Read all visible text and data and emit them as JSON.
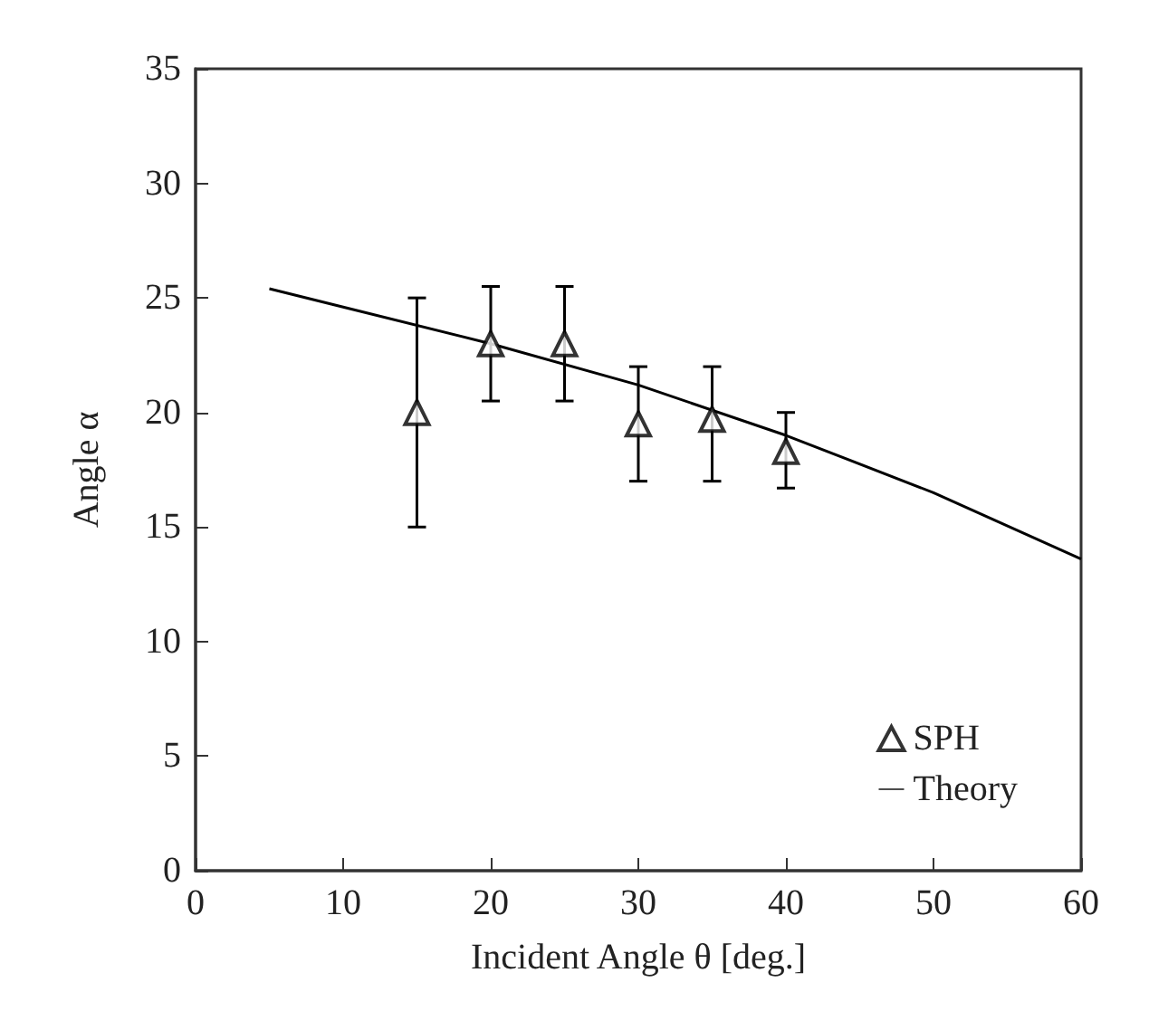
{
  "chart_data": {
    "type": "scatter",
    "xlabel": "Incident Angle θ [deg.]",
    "ylabel": "Angle α",
    "xlim": [
      0,
      60
    ],
    "xticks": [
      0,
      10,
      20,
      30,
      40,
      50,
      60
    ],
    "ylim": [
      0,
      35
    ],
    "yticks": [
      0,
      5,
      10,
      15,
      20,
      25,
      30,
      35
    ],
    "legend": "bottom right",
    "grid": false,
    "series": [
      {
        "name": "SPH",
        "marker": "triangle",
        "color": "#000000",
        "x": [
          15,
          20,
          25,
          30,
          35,
          40
        ],
        "values": [
          20,
          23,
          23,
          19.5,
          19.7,
          18.3
        ],
        "errors": [
          [
            15,
            25
          ],
          [
            20.5,
            25.5
          ],
          [
            20.5,
            25.5
          ],
          [
            17,
            22
          ],
          [
            17,
            22
          ],
          [
            16.7,
            20
          ]
        ]
      },
      {
        "name": "Theory",
        "type": "line",
        "marker": "none",
        "line_style": "solid",
        "color": "#000000",
        "x": [
          5,
          10,
          20,
          30,
          40,
          50,
          60
        ],
        "values": [
          25.4,
          24.6,
          23.0,
          21.2,
          19.0,
          16.5,
          13.6
        ]
      }
    ]
  }
}
